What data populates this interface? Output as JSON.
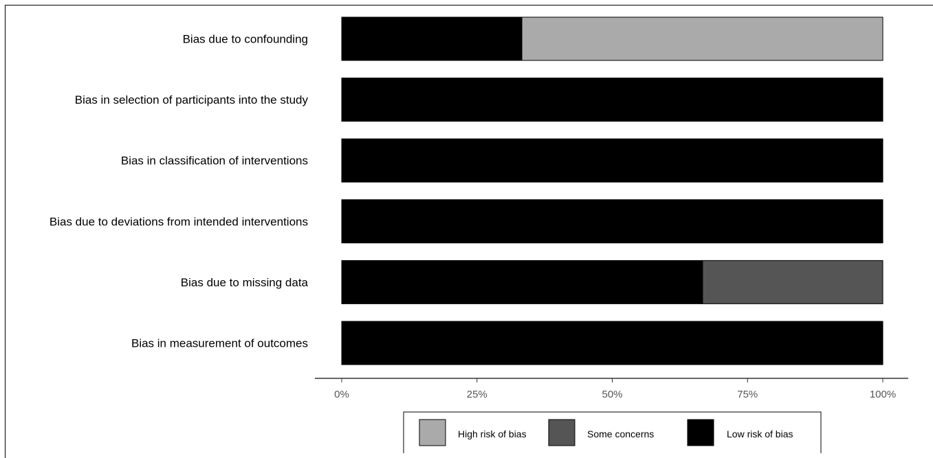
{
  "chart_data": {
    "type": "bar",
    "orientation": "horizontal",
    "stacked": true,
    "percent_scale": true,
    "categories": [
      "Bias due to confounding",
      "Bias in selection of participants into the study",
      "Bias in classification of interventions",
      "Bias due to deviations from intended interventions",
      "Bias due to missing data",
      "Bias in measurement of outcomes"
    ],
    "series": [
      {
        "name": "Low risk of bias",
        "color": "#000000",
        "values": [
          33.3,
          100,
          100,
          100,
          66.7,
          100
        ]
      },
      {
        "name": "Some concerns",
        "color": "#555555",
        "values": [
          0,
          0,
          0,
          0,
          33.3,
          0
        ]
      },
      {
        "name": "High risk of bias",
        "color": "#aaaaaa",
        "values": [
          66.7,
          0,
          0,
          0,
          0,
          0
        ]
      }
    ],
    "xlim": [
      0,
      100
    ],
    "x_ticks": [
      0,
      25,
      50,
      75,
      100
    ],
    "x_tick_labels": [
      "0%",
      "25%",
      "50%",
      "75%",
      "100%"
    ],
    "title": "",
    "xlabel": "",
    "ylabel": "",
    "grid": false,
    "legend": {
      "position": "bottom",
      "order": [
        "High risk of bias",
        "Some concerns",
        "Low risk of bias"
      ]
    }
  }
}
